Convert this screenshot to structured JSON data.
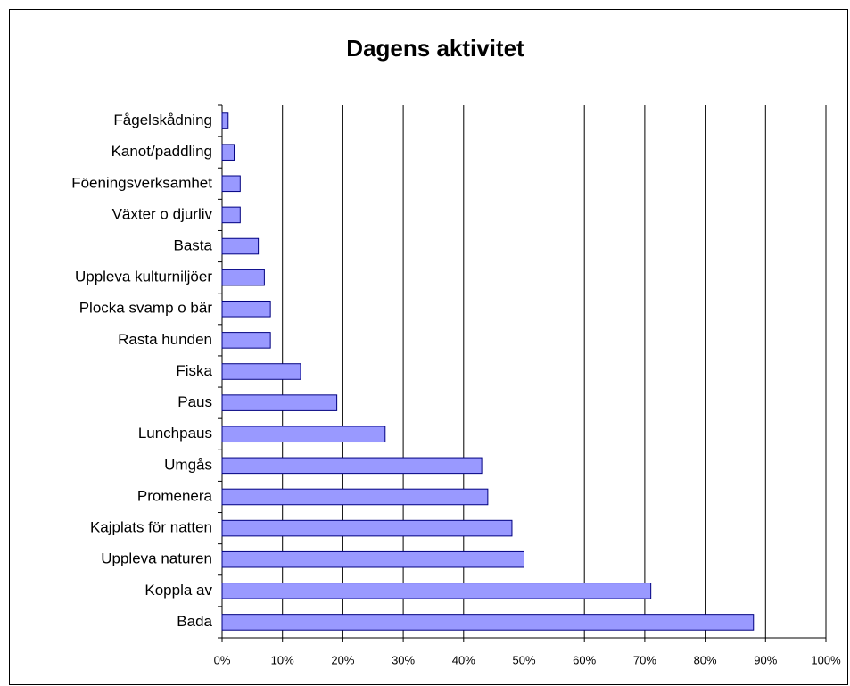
{
  "chart_data": {
    "type": "bar",
    "orientation": "horizontal",
    "title": "Dagens aktivitet",
    "categories": [
      "Fågelskådning",
      "Kanot/paddling",
      "Föeningsverksamhet",
      "Växter o djurliv",
      "Basta",
      "Uppleva kulturniljöer",
      "Plocka svamp o bär",
      "Rasta hunden",
      "Fiska",
      "Paus",
      "Lunchpaus",
      "Umgås",
      "Promenera",
      "Kajplats för natten",
      "Uppleva naturen",
      "Koppla av",
      "Bada"
    ],
    "values": [
      1,
      2,
      3,
      3,
      6,
      7,
      8,
      8,
      13,
      19,
      27,
      43,
      44,
      48,
      50,
      71,
      88
    ],
    "color": "#9999ff",
    "xlim": [
      0,
      100
    ],
    "xticks": [
      {
        "value": 0,
        "label": "0%"
      },
      {
        "value": 10,
        "label": "10%"
      },
      {
        "value": 20,
        "label": "20%"
      },
      {
        "value": 30,
        "label": "30%"
      },
      {
        "value": 40,
        "label": "40%"
      },
      {
        "value": 50,
        "label": "50%"
      },
      {
        "value": 60,
        "label": "60%"
      },
      {
        "value": 70,
        "label": "70%"
      },
      {
        "value": 80,
        "label": "80%"
      },
      {
        "value": 90,
        "label": "90%"
      },
      {
        "value": 100,
        "label": "100%"
      }
    ],
    "grid": true
  }
}
